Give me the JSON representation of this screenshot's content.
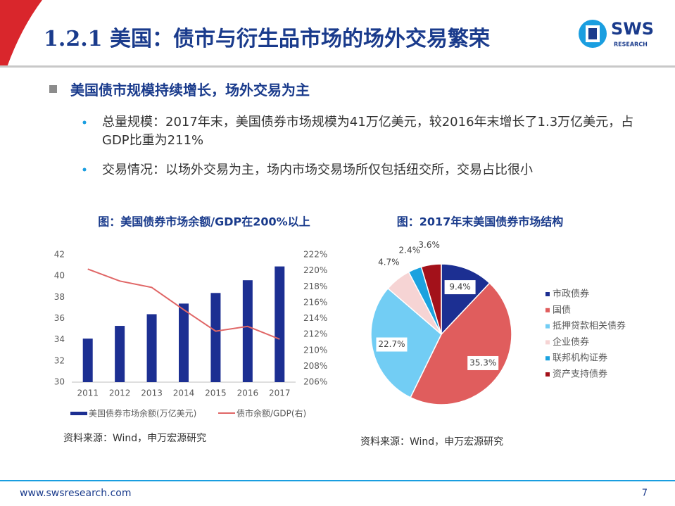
{
  "header": {
    "title": "1.2.1 美国：债市与衍生品市场的场外交易繁荣",
    "logo": "SWS",
    "logo_sub": "RESEARCH"
  },
  "bullets": {
    "main": "美国债市规模持续增长，场外交易为主",
    "items": [
      "总量规模：2017年末，美国债券市场规模为41万亿美元，较2016年末增长了1.3万亿美元，占GDP比重为211%",
      "交易情况：以场外交易为主，场内市场交易场所仅包括纽交所，交易占比很小"
    ]
  },
  "chart_data": [
    {
      "type": "bar-line",
      "title": "图：美国债券市场余额/GDP在200%以上",
      "categories": [
        "2011",
        "2012",
        "2013",
        "2014",
        "2015",
        "2016",
        "2017"
      ],
      "series": [
        {
          "name": "美国债券市场余额(万亿美元)",
          "type": "bar",
          "color": "#1c2f92",
          "values": [
            34.1,
            35.3,
            36.4,
            37.4,
            38.4,
            39.6,
            40.9
          ]
        },
        {
          "name": "债市余额/GDP(右)",
          "type": "line",
          "axis": "y2",
          "color": "#e06666",
          "values": [
            220.2,
            218.7,
            217.9,
            215.1,
            212.4,
            213.0,
            211.4
          ]
        }
      ],
      "ylim": [
        30,
        42
      ],
      "yticks": [
        30,
        32,
        34,
        36,
        38,
        40,
        42
      ],
      "y2lim": [
        206,
        222
      ],
      "y2ticks": [
        {
          "value": 206,
          "label": "206%"
        },
        {
          "value": 208,
          "label": "208%"
        },
        {
          "value": 210,
          "label": "210%"
        },
        {
          "value": 212,
          "label": "212%"
        },
        {
          "value": 214,
          "label": "214%"
        },
        {
          "value": 216,
          "label": "216%"
        },
        {
          "value": 218,
          "label": "218%"
        },
        {
          "value": 220,
          "label": "220%"
        },
        {
          "value": 222,
          "label": "222%"
        }
      ],
      "grid": false,
      "legend": "bottom",
      "source": "资料来源：Wind，申万宏源研究"
    },
    {
      "type": "pie",
      "title": "图：2017年末美国债券市场结构",
      "categories": [
        "市政债券",
        "国债",
        "抵押贷款相关债券",
        "企业债券",
        "联邦机构证券",
        "资产支持债券"
      ],
      "values": [
        9.4,
        35.3,
        22.7,
        4.7,
        2.4,
        3.6
      ],
      "value_labels": [
        "9.4%",
        "35.3%",
        "22.7%",
        "4.7%",
        "2.4%",
        "3.6%"
      ],
      "colors": [
        "#1c2f92",
        "#e05d5d",
        "#72cdf4",
        "#f6d4d4",
        "#1ba2df",
        "#a3111a"
      ],
      "legend": "right",
      "source": "资料来源：Wind，申万宏源研究"
    }
  ],
  "footer": {
    "url": "www.swsresearch.com",
    "page": 7
  }
}
